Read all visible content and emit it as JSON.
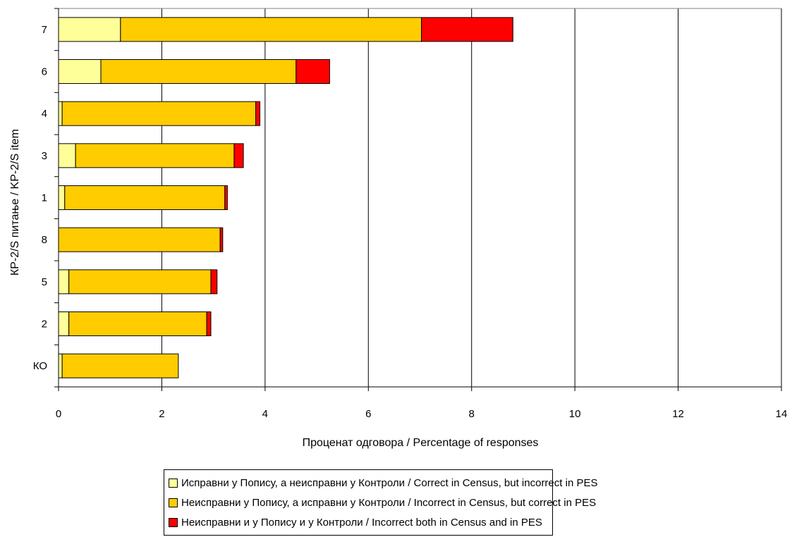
{
  "chart_data": {
    "type": "bar",
    "orientation": "horizontal",
    "stacked": true,
    "categories": [
      "7",
      "6",
      "4",
      "3",
      "1",
      "8",
      "5",
      "2",
      "КО"
    ],
    "series": [
      {
        "name": "Исправни у Попису, а неисправни у Контроли / Correct in Census, but incorrect in PES",
        "color": "#ffff99",
        "values": [
          1.2,
          0.82,
          0.07,
          0.33,
          0.12,
          0.0,
          0.2,
          0.2,
          0.07
        ]
      },
      {
        "name": "Неисправни у Попису, а исправни у Контроли / Incorrect in Census, but correct in PES",
        "color": "#ffcc00",
        "values": [
          5.83,
          3.78,
          3.75,
          3.07,
          3.1,
          3.13,
          2.75,
          2.67,
          2.25
        ]
      },
      {
        "name": "Неисправни и у Попису и у Контроли / Incorrect both in Census and in PES",
        "color": "#ff0000",
        "values": [
          1.77,
          0.65,
          0.08,
          0.18,
          0.05,
          0.05,
          0.12,
          0.08,
          0.0
        ]
      }
    ],
    "xlabel": "Проценат одговора / Percentage of responses",
    "ylabel": "КР-2/S питање / KP-2/S item",
    "xlim": [
      0,
      14
    ],
    "xticks": [
      "0",
      "2",
      "4",
      "6",
      "8",
      "10",
      "12",
      "14"
    ],
    "grid": "vertical",
    "legend_position": "bottom"
  }
}
